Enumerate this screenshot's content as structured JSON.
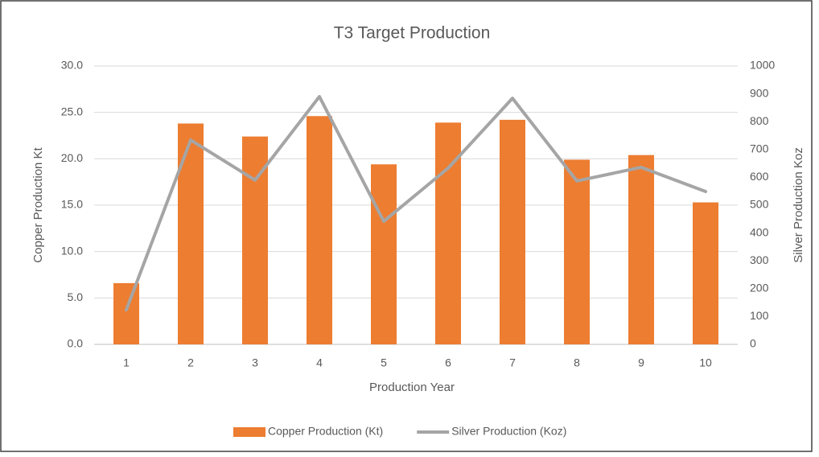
{
  "chart_data": {
    "type": "bar_line",
    "title": "T3 Target Production",
    "x_label": "Production Year",
    "y_label": "Copper Production Kt",
    "y2_label": "Silver Production Koz",
    "categories": [
      "1",
      "2",
      "3",
      "4",
      "5",
      "6",
      "7",
      "8",
      "9",
      "10"
    ],
    "series": [
      {
        "name": "Copper Production (Kt)",
        "type": "bar",
        "color": "#ed7d31",
        "values": [
          6.6,
          23.8,
          22.4,
          24.6,
          19.4,
          23.9,
          24.2,
          19.9,
          20.4,
          15.3
        ]
      },
      {
        "name": "Silver Production (Koz)",
        "type": "line",
        "axis": "y2",
        "color": "#a5a5a5",
        "values": [
          124,
          734,
          590,
          890,
          442,
          633,
          884,
          587,
          636,
          549
        ]
      }
    ],
    "ylim": [
      0,
      30
    ],
    "yticks": [
      {
        "value": 0,
        "label": "0.0"
      },
      {
        "value": 5,
        "label": "5.0"
      },
      {
        "value": 10,
        "label": "10.0"
      },
      {
        "value": 15,
        "label": "15.0"
      },
      {
        "value": 20,
        "label": "20.0"
      },
      {
        "value": 25,
        "label": "25.0"
      },
      {
        "value": 30,
        "label": "30.0"
      }
    ],
    "y2lim": [
      0,
      1000
    ],
    "y2ticks": [
      0,
      100,
      200,
      300,
      400,
      500,
      600,
      700,
      800,
      900,
      1000
    ],
    "grid": true,
    "legend": "bottom"
  }
}
